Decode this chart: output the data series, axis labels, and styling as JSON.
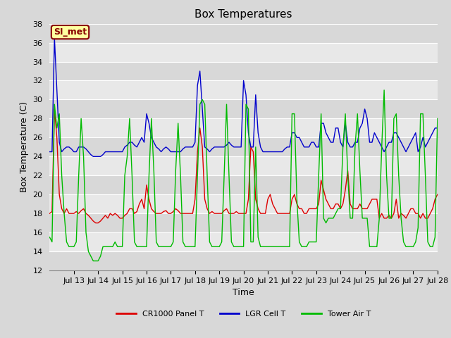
{
  "title": "Box Temperatures",
  "ylabel": "Box Temperature (C)",
  "xlabel": "Time",
  "ylim": [
    12,
    38
  ],
  "yticks": [
    12,
    14,
    16,
    18,
    20,
    22,
    24,
    26,
    28,
    30,
    32,
    34,
    36,
    38
  ],
  "xlim": [
    0,
    16
  ],
  "xtick_positions": [
    1,
    2,
    3,
    4,
    5,
    6,
    7,
    8,
    9,
    10,
    11,
    12,
    13,
    14,
    15,
    16
  ],
  "xtick_labels": [
    "Jul 13",
    "Jul 14",
    "Jul 15",
    "Jul 16",
    "Jul 17",
    "Jul 18",
    "Jul 19",
    "Jul 20",
    "Jul 21",
    "Jul 22",
    "Jul 23",
    "Jul 24",
    "Jul 25",
    "Jul 26",
    "Jul 27",
    "Jul 28"
  ],
  "background_color": "#d8d8d8",
  "plot_bg_light": "#e8e8e8",
  "plot_bg_dark": "#d8d8d8",
  "grid_color": "#ffffff",
  "annotation_text": "SI_met",
  "annotation_bg": "#ffffa0",
  "annotation_border": "#880000",
  "annotation_text_color": "#880000",
  "title_fontsize": 11,
  "axis_label_fontsize": 9,
  "tick_fontsize": 8,
  "legend_fontsize": 8,
  "series": {
    "CR1000 Panel T": {
      "color": "#dd0000",
      "x": [
        0.0,
        0.1,
        0.2,
        0.3,
        0.4,
        0.5,
        0.6,
        0.7,
        0.8,
        0.9,
        1.0,
        1.1,
        1.2,
        1.3,
        1.4,
        1.5,
        1.6,
        1.7,
        1.8,
        1.9,
        2.0,
        2.1,
        2.2,
        2.3,
        2.4,
        2.5,
        2.6,
        2.7,
        2.8,
        2.9,
        3.0,
        3.1,
        3.2,
        3.3,
        3.4,
        3.5,
        3.6,
        3.7,
        3.8,
        3.9,
        4.0,
        4.1,
        4.2,
        4.3,
        4.4,
        4.5,
        4.6,
        4.7,
        4.8,
        4.9,
        5.0,
        5.1,
        5.2,
        5.3,
        5.4,
        5.5,
        5.6,
        5.7,
        5.8,
        5.9,
        6.0,
        6.1,
        6.2,
        6.3,
        6.4,
        6.5,
        6.6,
        6.7,
        6.8,
        6.9,
        7.0,
        7.1,
        7.2,
        7.3,
        7.4,
        7.5,
        7.6,
        7.7,
        7.8,
        7.9,
        8.0,
        8.1,
        8.2,
        8.3,
        8.4,
        8.5,
        8.6,
        8.7,
        8.8,
        8.9,
        9.0,
        9.1,
        9.2,
        9.3,
        9.4,
        9.5,
        9.6,
        9.7,
        9.8,
        9.9,
        10.0,
        10.1,
        10.2,
        10.3,
        10.4,
        10.5,
        10.6,
        10.7,
        10.8,
        10.9,
        11.0,
        11.1,
        11.2,
        11.3,
        11.4,
        11.5,
        11.6,
        11.7,
        11.8,
        11.9,
        12.0,
        12.1,
        12.2,
        12.3,
        12.4,
        12.5,
        12.6,
        12.7,
        12.8,
        12.9,
        13.0,
        13.1,
        13.2,
        13.3,
        13.4,
        13.5,
        13.6,
        13.7,
        13.8,
        13.9,
        14.0,
        14.1,
        14.2,
        14.3,
        14.4,
        14.5,
        14.6,
        14.7,
        14.8,
        14.9,
        15.0,
        15.1,
        15.2,
        15.3,
        15.4,
        15.5,
        15.6,
        15.7,
        15.8,
        15.9,
        16.0
      ],
      "y": [
        18.0,
        18.2,
        29.0,
        26.0,
        20.0,
        18.5,
        18.0,
        18.5,
        18.0,
        18.0,
        18.0,
        18.2,
        18.0,
        18.3,
        18.5,
        18.0,
        17.8,
        17.5,
        17.2,
        17.0,
        17.0,
        17.2,
        17.5,
        17.8,
        17.5,
        18.0,
        17.8,
        18.0,
        17.8,
        17.5,
        17.5,
        17.8,
        18.0,
        18.5,
        18.5,
        18.0,
        18.2,
        19.0,
        19.5,
        18.5,
        21.0,
        19.5,
        18.5,
        18.2,
        18.0,
        18.0,
        18.0,
        18.2,
        18.3,
        18.0,
        18.0,
        18.2,
        18.5,
        18.3,
        18.0,
        18.0,
        18.0,
        18.0,
        18.0,
        18.0,
        19.5,
        24.5,
        27.0,
        25.0,
        19.5,
        18.5,
        18.0,
        18.2,
        18.0,
        18.0,
        18.0,
        18.0,
        18.3,
        18.5,
        18.0,
        18.0,
        18.0,
        18.2,
        18.0,
        18.0,
        18.0,
        18.0,
        19.5,
        25.0,
        24.5,
        19.5,
        18.5,
        18.0,
        18.0,
        18.0,
        19.5,
        20.0,
        19.0,
        18.5,
        18.0,
        18.0,
        18.0,
        18.0,
        18.0,
        18.0,
        19.5,
        20.0,
        19.0,
        18.5,
        18.5,
        18.0,
        18.0,
        18.5,
        18.5,
        18.5,
        18.5,
        19.0,
        21.5,
        20.5,
        19.5,
        19.0,
        18.5,
        18.5,
        19.0,
        19.0,
        18.5,
        19.0,
        20.5,
        22.5,
        19.0,
        18.5,
        18.5,
        18.5,
        19.0,
        18.5,
        18.5,
        18.5,
        19.0,
        19.5,
        19.5,
        19.5,
        17.5,
        18.0,
        17.5,
        17.5,
        17.8,
        17.5,
        18.0,
        19.5,
        17.5,
        18.0,
        17.8,
        17.5,
        18.0,
        18.5,
        18.5,
        18.0,
        18.0,
        17.5,
        18.0,
        17.5,
        17.5,
        18.0,
        18.5,
        19.5,
        20.0
      ]
    },
    "LGR Cell T": {
      "color": "#0000cc",
      "x": [
        0.0,
        0.1,
        0.2,
        0.3,
        0.4,
        0.5,
        0.6,
        0.7,
        0.8,
        0.9,
        1.0,
        1.1,
        1.2,
        1.3,
        1.4,
        1.5,
        1.6,
        1.7,
        1.8,
        1.9,
        2.0,
        2.1,
        2.2,
        2.3,
        2.4,
        2.5,
        2.6,
        2.7,
        2.8,
        2.9,
        3.0,
        3.1,
        3.2,
        3.3,
        3.4,
        3.5,
        3.6,
        3.7,
        3.8,
        3.9,
        4.0,
        4.1,
        4.2,
        4.3,
        4.4,
        4.5,
        4.6,
        4.7,
        4.8,
        4.9,
        5.0,
        5.1,
        5.2,
        5.3,
        5.4,
        5.5,
        5.6,
        5.7,
        5.8,
        5.9,
        6.0,
        6.1,
        6.2,
        6.3,
        6.4,
        6.5,
        6.6,
        6.7,
        6.8,
        6.9,
        7.0,
        7.1,
        7.2,
        7.3,
        7.4,
        7.5,
        7.6,
        7.7,
        7.8,
        7.9,
        8.0,
        8.1,
        8.2,
        8.3,
        8.4,
        8.5,
        8.6,
        8.7,
        8.8,
        8.9,
        9.0,
        9.1,
        9.2,
        9.3,
        9.4,
        9.5,
        9.6,
        9.7,
        9.8,
        9.9,
        10.0,
        10.1,
        10.2,
        10.3,
        10.4,
        10.5,
        10.6,
        10.7,
        10.8,
        10.9,
        11.0,
        11.1,
        11.2,
        11.3,
        11.4,
        11.5,
        11.6,
        11.7,
        11.8,
        11.9,
        12.0,
        12.1,
        12.2,
        12.3,
        12.4,
        12.5,
        12.6,
        12.7,
        12.8,
        12.9,
        13.0,
        13.1,
        13.2,
        13.3,
        13.4,
        13.5,
        13.6,
        13.7,
        13.8,
        13.9,
        14.0,
        14.1,
        14.2,
        14.3,
        14.4,
        14.5,
        14.6,
        14.7,
        14.8,
        14.9,
        15.0,
        15.1,
        15.2,
        15.3,
        15.4,
        15.5,
        15.6,
        15.7,
        15.8,
        15.9,
        16.0
      ],
      "y": [
        24.5,
        24.5,
        36.5,
        31.0,
        25.5,
        24.5,
        24.8,
        25.0,
        25.0,
        24.8,
        24.5,
        24.5,
        25.0,
        25.0,
        25.0,
        24.8,
        24.5,
        24.2,
        24.0,
        24.0,
        24.0,
        24.0,
        24.2,
        24.5,
        24.5,
        24.5,
        24.5,
        24.5,
        24.5,
        24.5,
        24.5,
        25.0,
        25.2,
        25.5,
        25.5,
        25.2,
        25.0,
        25.5,
        26.0,
        25.5,
        28.5,
        27.5,
        26.0,
        25.5,
        25.0,
        24.8,
        24.5,
        24.8,
        25.0,
        24.8,
        24.5,
        24.5,
        24.5,
        24.5,
        24.5,
        24.8,
        25.0,
        25.0,
        25.0,
        25.0,
        25.5,
        31.5,
        33.0,
        29.0,
        25.0,
        24.8,
        24.5,
        24.8,
        25.0,
        25.0,
        25.0,
        25.0,
        25.0,
        25.2,
        25.5,
        25.2,
        25.0,
        25.0,
        25.0,
        25.0,
        32.0,
        30.5,
        26.5,
        25.0,
        25.0,
        30.5,
        26.5,
        25.0,
        24.5,
        24.5,
        24.5,
        24.5,
        24.5,
        24.5,
        24.5,
        24.5,
        24.5,
        24.8,
        25.0,
        25.0,
        26.5,
        26.5,
        26.0,
        26.0,
        25.5,
        25.0,
        25.0,
        25.0,
        25.5,
        25.5,
        25.0,
        25.0,
        27.5,
        27.5,
        26.5,
        26.0,
        25.5,
        25.5,
        27.0,
        27.0,
        25.5,
        25.0,
        27.5,
        25.5,
        25.0,
        25.0,
        25.5,
        25.5,
        27.0,
        27.5,
        29.0,
        28.0,
        25.5,
        25.5,
        26.5,
        26.0,
        25.5,
        25.0,
        24.5,
        25.0,
        25.5,
        25.5,
        26.5,
        26.5,
        26.0,
        25.5,
        25.0,
        24.5,
        25.0,
        25.5,
        26.0,
        26.5,
        24.5,
        25.0,
        26.0,
        25.0,
        25.5,
        26.0,
        26.5,
        27.0,
        27.0
      ]
    },
    "Tower Air T": {
      "color": "#00bb00",
      "x": [
        0.0,
        0.1,
        0.2,
        0.3,
        0.4,
        0.5,
        0.6,
        0.7,
        0.8,
        0.9,
        1.0,
        1.1,
        1.2,
        1.3,
        1.4,
        1.5,
        1.6,
        1.7,
        1.8,
        1.9,
        2.0,
        2.1,
        2.2,
        2.3,
        2.4,
        2.5,
        2.6,
        2.7,
        2.8,
        2.9,
        3.0,
        3.1,
        3.2,
        3.3,
        3.4,
        3.5,
        3.6,
        3.7,
        3.8,
        3.9,
        4.0,
        4.1,
        4.2,
        4.3,
        4.4,
        4.5,
        4.6,
        4.7,
        4.8,
        4.9,
        5.0,
        5.1,
        5.2,
        5.3,
        5.4,
        5.5,
        5.6,
        5.7,
        5.8,
        5.9,
        6.0,
        6.1,
        6.2,
        6.3,
        6.4,
        6.5,
        6.6,
        6.7,
        6.8,
        6.9,
        7.0,
        7.1,
        7.2,
        7.3,
        7.4,
        7.5,
        7.6,
        7.7,
        7.8,
        7.9,
        8.0,
        8.1,
        8.2,
        8.3,
        8.4,
        8.5,
        8.6,
        8.7,
        8.8,
        8.9,
        9.0,
        9.1,
        9.2,
        9.3,
        9.4,
        9.5,
        9.6,
        9.7,
        9.8,
        9.9,
        10.0,
        10.1,
        10.2,
        10.3,
        10.4,
        10.5,
        10.6,
        10.7,
        10.8,
        10.9,
        11.0,
        11.1,
        11.2,
        11.3,
        11.4,
        11.5,
        11.6,
        11.7,
        11.8,
        11.9,
        12.0,
        12.1,
        12.2,
        12.3,
        12.4,
        12.5,
        12.6,
        12.7,
        12.8,
        12.9,
        13.0,
        13.1,
        13.2,
        13.3,
        13.4,
        13.5,
        13.6,
        13.7,
        13.8,
        13.9,
        14.0,
        14.1,
        14.2,
        14.3,
        14.4,
        14.5,
        14.6,
        14.7,
        14.8,
        14.9,
        15.0,
        15.1,
        15.2,
        15.3,
        15.4,
        15.5,
        15.6,
        15.7,
        15.8,
        15.9,
        16.0
      ],
      "y": [
        15.5,
        15.0,
        29.5,
        27.0,
        28.5,
        22.0,
        18.0,
        15.0,
        14.5,
        14.5,
        14.5,
        15.0,
        22.0,
        28.0,
        24.0,
        16.0,
        14.0,
        13.5,
        13.0,
        13.0,
        13.0,
        13.5,
        14.5,
        14.5,
        14.5,
        14.5,
        14.5,
        15.0,
        14.5,
        14.5,
        14.5,
        22.0,
        24.0,
        28.0,
        22.0,
        15.0,
        14.5,
        14.5,
        14.5,
        14.5,
        14.5,
        22.0,
        28.0,
        22.5,
        15.0,
        14.5,
        14.5,
        14.5,
        14.5,
        14.5,
        14.5,
        15.0,
        22.5,
        27.5,
        22.0,
        15.0,
        14.5,
        14.5,
        14.5,
        14.5,
        14.5,
        22.0,
        29.5,
        30.0,
        29.5,
        22.0,
        15.0,
        14.5,
        14.5,
        14.5,
        14.5,
        15.0,
        22.0,
        29.5,
        22.0,
        15.0,
        14.5,
        14.5,
        14.5,
        14.5,
        14.5,
        29.5,
        29.0,
        15.0,
        15.0,
        25.0,
        15.5,
        14.5,
        14.5,
        14.5,
        14.5,
        14.5,
        14.5,
        14.5,
        14.5,
        14.5,
        14.5,
        14.5,
        14.5,
        14.5,
        28.5,
        28.5,
        19.5,
        15.0,
        14.5,
        14.5,
        14.5,
        15.0,
        15.0,
        15.0,
        15.0,
        22.0,
        28.5,
        17.5,
        17.0,
        17.5,
        17.5,
        17.5,
        18.0,
        18.5,
        18.5,
        25.0,
        28.5,
        22.0,
        17.5,
        17.5,
        25.0,
        28.5,
        22.5,
        17.5,
        17.5,
        17.5,
        14.5,
        14.5,
        14.5,
        14.5,
        17.5,
        25.0,
        31.0,
        22.0,
        17.5,
        17.5,
        28.0,
        28.5,
        22.0,
        17.5,
        15.0,
        14.5,
        14.5,
        14.5,
        14.5,
        15.0,
        16.5,
        28.5,
        28.5,
        22.0,
        15.0,
        14.5,
        14.5,
        15.5,
        28.0
      ]
    }
  },
  "legend": [
    {
      "label": "CR1000 Panel T",
      "color": "#dd0000"
    },
    {
      "label": "LGR Cell T",
      "color": "#0000cc"
    },
    {
      "label": "Tower Air T",
      "color": "#00bb00"
    }
  ]
}
